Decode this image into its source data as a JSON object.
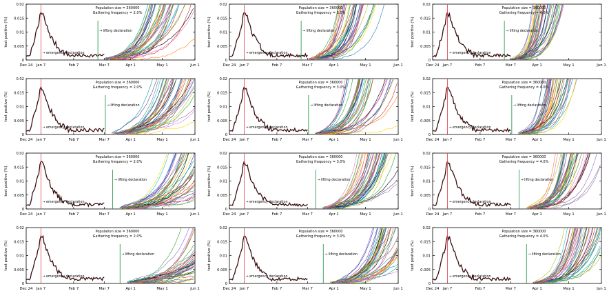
{
  "figure": {
    "rows": 4,
    "cols": 3,
    "ylabel": "test positive (%)",
    "y_ticks": [
      "0",
      "0.005",
      "0.01",
      "0.015",
      "0.02"
    ],
    "x_ticks": [
      "Dec 24",
      "Jan 7",
      "Feb 7",
      "Mar 7",
      "Apr 1",
      "May 1",
      "Jun 1"
    ],
    "population_text": "Population size = 360000",
    "emergency_text": "→ emergency declaration",
    "lifting_text": "→ lifting declaration",
    "colors": {
      "baseline": "#3a0d0d",
      "emergency_line": "#e0505a",
      "lifting_line": "#2e9b4a",
      "axis": "#000000",
      "trajectories": [
        "#1f3fbf",
        "#ff7f0e",
        "#2ca02c",
        "#d62728",
        "#9467bd",
        "#8c564b",
        "#e377c2",
        "#7f7f7f",
        "#bcbd22",
        "#17becf",
        "#000000",
        "#00a0a0",
        "#ffd700",
        "#6a3d9a",
        "#33a02c",
        "#1f78b4"
      ]
    }
  },
  "chart_data": [
    {
      "type": "line",
      "title": "Population size = 360000",
      "subtitle": "Gathering frequency = 2.0%",
      "ylabel": "test positive (%)",
      "ylim": [
        0,
        0.02
      ],
      "x_ticks": [
        "Dec 24",
        "Jan 7",
        "Feb 7",
        "Mar 7",
        "Apr 1",
        "May 1",
        "Jun 1"
      ],
      "emergency_label": "→ emergency declaration",
      "lifting_label": "→ lifting declaration",
      "lifting_date": "Mar 1",
      "trajectory_onset": "Mar 7",
      "n_series": 40,
      "peak_value": 0.017
    },
    {
      "type": "line",
      "title": "Population size = 360000",
      "subtitle": "Gathering frequency = 3.0%",
      "ylabel": "test positive (%)",
      "ylim": [
        0,
        0.02
      ],
      "x_ticks": [
        "Dec 24",
        "Jan 7",
        "Feb 7",
        "Mar 7",
        "Apr 1",
        "May 1",
        "Jun 1"
      ],
      "emergency_label": "→ emergency declaration",
      "lifting_label": "→ lifting declaration",
      "lifting_date": "Mar 1",
      "trajectory_onset": "Mar 7",
      "n_series": 40,
      "peak_value": 0.017
    },
    {
      "type": "line",
      "title": "Population size = 360000",
      "subtitle": "Gathering frequency = 4.0%",
      "ylabel": "test positive (%)",
      "ylim": [
        0,
        0.02
      ],
      "x_ticks": [
        "Dec 24",
        "Jan 7",
        "Feb 7",
        "Mar 7",
        "Apr 1",
        "May 1",
        "Jun 1"
      ],
      "emergency_label": "→ emergency declaration",
      "lifting_label": "→ lifting declaration",
      "lifting_date": "Mar 1",
      "trajectory_onset": "Mar 7",
      "n_series": 40,
      "peak_value": 0.017
    },
    {
      "type": "line",
      "title": "Population size = 360000",
      "subtitle": "Gathering frequency = 2.0%",
      "ylabel": "test positive (%)",
      "ylim": [
        0,
        0.02
      ],
      "x_ticks": [
        "Dec 24",
        "Jan 7",
        "Feb 7",
        "Mar 7",
        "Apr 1",
        "May 1",
        "Jun 1"
      ],
      "emergency_label": "→ emergency declaration",
      "lifting_label": "→ lifting declaration",
      "lifting_date": "Mar 8",
      "trajectory_onset": "Mar 14",
      "n_series": 40,
      "peak_value": 0.017
    },
    {
      "type": "line",
      "title": "Population size = 360000",
      "subtitle": "Gathering frequency = 3.0%",
      "ylabel": "test positive (%)",
      "ylim": [
        0,
        0.02
      ],
      "x_ticks": [
        "Dec 24",
        "Jan 7",
        "Feb 7",
        "Mar 7",
        "Apr 1",
        "May 1",
        "Jun 1"
      ],
      "emergency_label": "→ emergency declaration",
      "lifting_label": "→ lifting declaration",
      "lifting_date": "Mar 8",
      "trajectory_onset": "Mar 14",
      "n_series": 40,
      "peak_value": 0.017
    },
    {
      "type": "line",
      "title": "Population size = 360000",
      "subtitle": "Gathering frequency = 4.0%",
      "ylabel": "test positive (%)",
      "ylim": [
        0,
        0.02
      ],
      "x_ticks": [
        "Dec 24",
        "Jan 7",
        "Feb 7",
        "Mar 7",
        "Apr 1",
        "May 1",
        "Jun 1"
      ],
      "emergency_label": "→ emergency declaration",
      "lifting_label": "→ lifting declaration",
      "lifting_date": "Mar 8",
      "trajectory_onset": "Mar 14",
      "n_series": 40,
      "peak_value": 0.017
    },
    {
      "type": "line",
      "title": "Population size = 360000",
      "subtitle": "Gathering frequency = 2.0%",
      "ylabel": "test positive (%)",
      "ylim": [
        0,
        0.02
      ],
      "x_ticks": [
        "Dec 24",
        "Jan 7",
        "Feb 7",
        "Mar 7",
        "Apr 1",
        "May 1",
        "Jun 1"
      ],
      "emergency_label": "→ emergency declaration",
      "lifting_label": "→ lifting declaration",
      "lifting_date": "Mar 15",
      "trajectory_onset": "Mar 21",
      "n_series": 40,
      "peak_value": 0.017
    },
    {
      "type": "line",
      "title": "Population size = 360000",
      "subtitle": "Gathering frequency = 3.0%",
      "ylabel": "test positive (%)",
      "ylim": [
        0,
        0.02
      ],
      "x_ticks": [
        "Dec 24",
        "Jan 7",
        "Feb 7",
        "Mar 7",
        "Apr 1",
        "May 1",
        "Jun 1"
      ],
      "emergency_label": "→ emergency declaration",
      "lifting_label": "→ lifting declaration",
      "lifting_date": "Mar 15",
      "trajectory_onset": "Mar 21",
      "n_series": 40,
      "peak_value": 0.017
    },
    {
      "type": "line",
      "title": "Population size = 360000",
      "subtitle": "Gathering frequency = 4.0%",
      "ylabel": "test positive (%)",
      "ylim": [
        0,
        0.02
      ],
      "x_ticks": [
        "Dec 24",
        "Jan 7",
        "Feb 7",
        "Mar 7",
        "Apr 1",
        "May 1",
        "Jun 1"
      ],
      "emergency_label": "→ emergency declaration",
      "lifting_label": "→ lifting declaration",
      "lifting_date": "Mar 15",
      "trajectory_onset": "Mar 21",
      "n_series": 40,
      "peak_value": 0.017
    },
    {
      "type": "line",
      "title": "Population size = 360000",
      "subtitle": "Gathering frequency = 2.0%",
      "ylabel": "test positive (%)",
      "ylim": [
        0,
        0.02
      ],
      "x_ticks": [
        "Dec 24",
        "Jan 7",
        "Feb 7",
        "Mar 7",
        "Apr 1",
        "May 1",
        "Jun 1"
      ],
      "emergency_label": "→ emergency declaration",
      "lifting_label": "→ lifting declaration",
      "lifting_date": "Mar 22",
      "trajectory_onset": "Mar 28",
      "n_series": 40,
      "peak_value": 0.017
    },
    {
      "type": "line",
      "title": "Population size = 360000",
      "subtitle": "Gathering frequency = 3.0%",
      "ylabel": "test positive (%)",
      "ylim": [
        0,
        0.02
      ],
      "x_ticks": [
        "Dec 24",
        "Jan 7",
        "Feb 7",
        "Mar 7",
        "Apr 1",
        "May 1",
        "Jun 1"
      ],
      "emergency_label": "→ emergency declaration",
      "lifting_label": "→ lifting declaration",
      "lifting_date": "Mar 22",
      "trajectory_onset": "Mar 28",
      "n_series": 40,
      "peak_value": 0.017
    },
    {
      "type": "line",
      "title": "Population size = 360000",
      "subtitle": "Gathering frequency = 4.0%",
      "ylabel": "test positive (%)",
      "ylim": [
        0,
        0.02
      ],
      "x_ticks": [
        "Dec 24",
        "Jan 7",
        "Feb 7",
        "Mar 7",
        "Apr 1",
        "May 1",
        "Jun 1"
      ],
      "emergency_label": "→ emergency declaration",
      "lifting_label": "→ lifting declaration",
      "lifting_date": "Mar 22",
      "trajectory_onset": "Mar 28",
      "n_series": 40,
      "peak_value": 0.017
    }
  ]
}
